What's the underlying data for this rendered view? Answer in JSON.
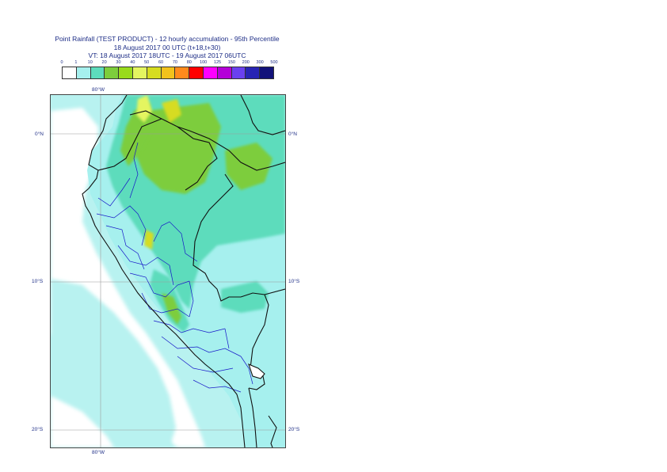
{
  "title": {
    "line1": "Point Rainfall (TEST PRODUCT) - 12 hourly accumulation - 95th Percentile",
    "line2": "18 August 2017 00 UTC (t+18,t+30)",
    "line3": "VT: 18 August 2017 18UTC - 19 August 2017 06UTC"
  },
  "legend": {
    "labels": [
      "0",
      "1",
      "10",
      "20",
      "30",
      "40",
      "50",
      "60",
      "70",
      "80",
      "100",
      "125",
      "150",
      "200",
      "300",
      "500"
    ],
    "colors": [
      "#ffffff",
      "#a6f0ee",
      "#5ddcbc",
      "#7dcd3c",
      "#99db1c",
      "#e4f560",
      "#d6dc20",
      "#f2c21c",
      "#ff8a1c",
      "#ff0000",
      "#ff00ff",
      "#b400d8",
      "#6a40f0",
      "#2824b4",
      "#12127a"
    ]
  },
  "axes": {
    "top_lon": "80°W",
    "bottom_lon": "80°W",
    "lat_left": [
      "0°N",
      "10°S",
      "20°S"
    ],
    "lat_right": [
      "0°N",
      "10°S",
      "20°S"
    ]
  },
  "colors": {
    "ocean_light": "#b8f2f0",
    "ocean_white": "#ffffff",
    "border": "#111111",
    "admin": "#1818c8",
    "grid": "#9a9a9a"
  }
}
